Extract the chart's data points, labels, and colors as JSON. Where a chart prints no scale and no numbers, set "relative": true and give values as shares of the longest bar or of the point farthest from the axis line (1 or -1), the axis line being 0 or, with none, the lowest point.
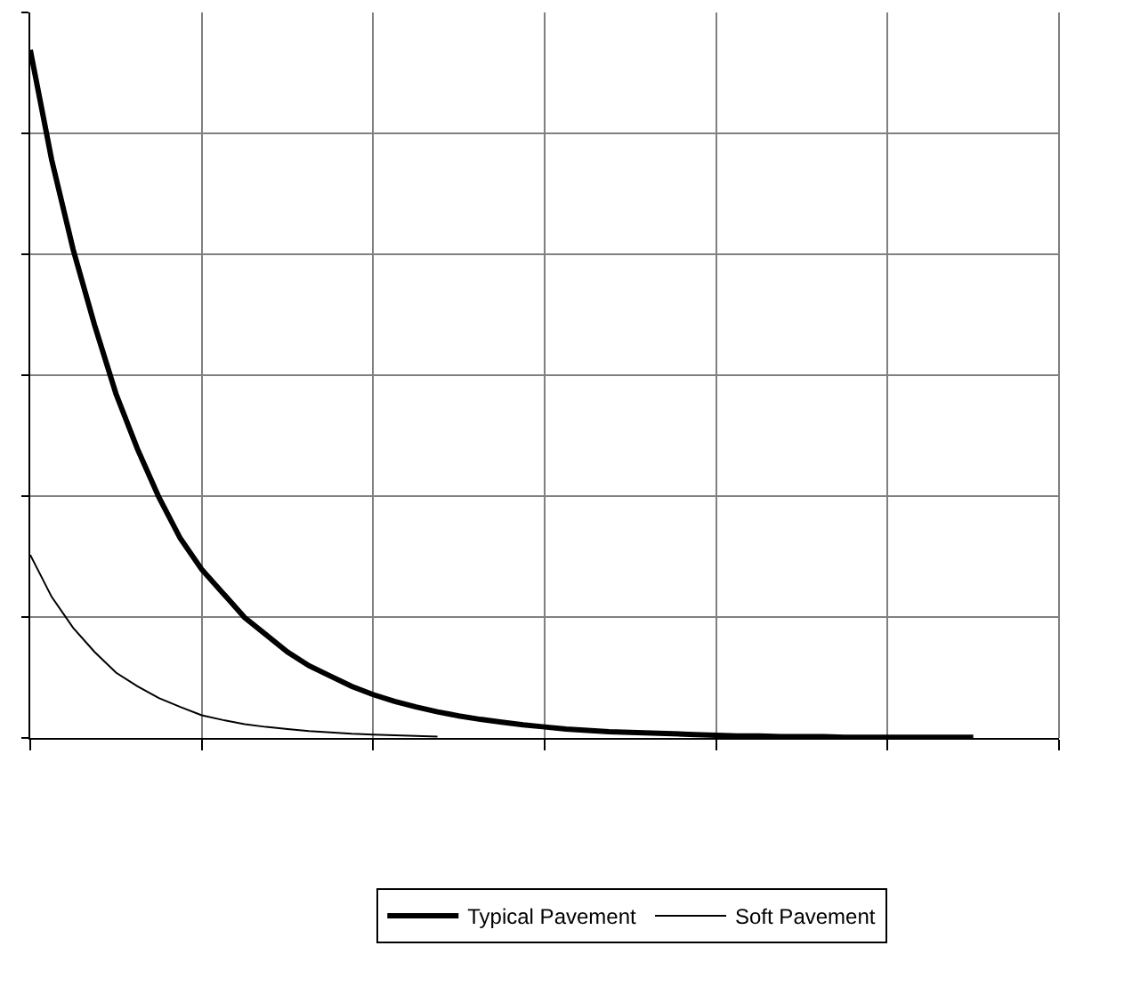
{
  "chart_data": {
    "type": "line",
    "relative": true,
    "grid": true,
    "legend": "bottom",
    "categories": [
      null,
      null,
      null,
      null,
      null,
      null,
      null,
      null,
      null,
      null,
      null,
      null,
      null,
      null,
      null,
      null,
      null,
      null,
      null,
      null,
      null,
      null,
      null,
      null,
      null,
      null,
      null,
      null,
      null,
      null,
      null,
      null,
      null,
      null,
      null,
      null,
      null,
      null,
      null,
      null,
      null,
      null,
      null,
      null,
      null,
      null,
      null,
      null,
      null
    ],
    "series": [
      {
        "name": "Typical Pavement",
        "color": "#000000",
        "values": [
          1,
          0.84,
          0.71,
          0.6,
          0.5,
          0.42,
          0.35,
          0.29,
          0.245,
          0.21,
          0.175,
          0.15,
          0.125,
          0.105,
          0.09,
          0.075,
          0.063,
          0.053,
          0.045,
          0.038,
          0.032,
          0.027,
          0.023,
          0.019,
          0.016,
          0.013,
          0.011,
          0.009,
          0.008,
          0.007,
          0.006,
          0.005,
          0.004,
          0.003,
          0.003,
          0.002,
          0.002,
          0.002,
          0.001,
          0.001,
          0.001,
          0.001,
          0.001,
          0.001,
          0.001,
          null,
          null,
          null,
          null
        ]
      },
      {
        "name": "Soft Pavement",
        "color": "#000000",
        "values": [
          0.266,
          0.205,
          0.16,
          0.125,
          0.095,
          0.075,
          0.058,
          0.045,
          0.033,
          0.026,
          0.02,
          0.016,
          0.013,
          0.01,
          0.008,
          0.006,
          0.005,
          0.004,
          0.003,
          0.002,
          null,
          null,
          null,
          null,
          null,
          null,
          null,
          null,
          null,
          null,
          null,
          null,
          null,
          null,
          null,
          null,
          null,
          null,
          null,
          null,
          null,
          null,
          null,
          null,
          null,
          null,
          null,
          null,
          null
        ]
      }
    ]
  }
}
